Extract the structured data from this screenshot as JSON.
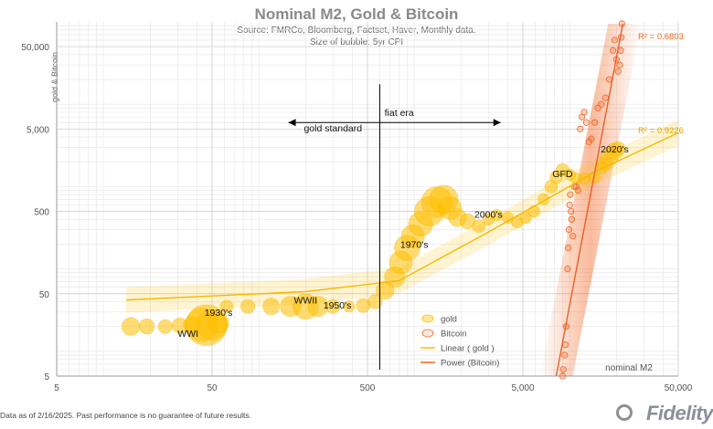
{
  "chart_data": {
    "type": "scatter",
    "title": "Nominal M2, Gold & Bitcoin",
    "subtitle_lines": [
      "Source: FMRCo, Bloomberg, Factset, Haver, Monthly data.",
      "Size of bubble: 5yr CPI"
    ],
    "xlabel": "nominal M2",
    "ylabel": "gold & Bitcoin",
    "x_scale": "log",
    "y_scale": "log",
    "xlim": [
      5,
      50000
    ],
    "ylim": [
      5,
      100000
    ],
    "x_ticks": [
      5,
      50,
      500,
      5000,
      50000
    ],
    "x_tick_labels": [
      "5",
      "50",
      "500",
      "5,000",
      "50,000"
    ],
    "y_ticks": [
      5,
      50,
      500,
      5000,
      50000
    ],
    "y_tick_labels": [
      "5",
      "50",
      "500",
      "5,000",
      "50,000"
    ],
    "grid": true,
    "legend_placement": "bottom-right",
    "legend": [
      "gold",
      "Bitcoin",
      "Linear ( gold )",
      "Power (Bitcoin)"
    ],
    "colors": {
      "gold": "#FFC000",
      "bitcoin": "#F26522",
      "divider": "#000000"
    },
    "series": [
      {
        "name": "gold",
        "points": [
          {
            "x": 15,
            "y": 20,
            "s": 1.4
          },
          {
            "x": 19,
            "y": 20,
            "s": 1.2
          },
          {
            "x": 25,
            "y": 20,
            "s": 1.1
          },
          {
            "x": 31,
            "y": 20.5,
            "s": 1.2
          },
          {
            "x": 37,
            "y": 21,
            "s": 1.3
          },
          {
            "x": 43,
            "y": 21,
            "s": 2.6
          },
          {
            "x": 46,
            "y": 20.7,
            "s": 3.2
          },
          {
            "x": 50,
            "y": 21,
            "s": 2.4
          },
          {
            "x": 55,
            "y": 22,
            "s": 1.6
          },
          {
            "x": 62,
            "y": 35,
            "s": 1.0
          },
          {
            "x": 85,
            "y": 35,
            "s": 1.1
          },
          {
            "x": 120,
            "y": 35,
            "s": 1.3
          },
          {
            "x": 160,
            "y": 35,
            "s": 1.6
          },
          {
            "x": 200,
            "y": 35,
            "s": 2.0
          },
          {
            "x": 240,
            "y": 35,
            "s": 1.6
          },
          {
            "x": 300,
            "y": 35,
            "s": 1.1
          },
          {
            "x": 380,
            "y": 35,
            "s": 0.9
          },
          {
            "x": 470,
            "y": 36,
            "s": 1.1
          },
          {
            "x": 560,
            "y": 40,
            "s": 1.1
          },
          {
            "x": 650,
            "y": 55,
            "s": 1.4
          },
          {
            "x": 750,
            "y": 80,
            "s": 1.6
          },
          {
            "x": 820,
            "y": 120,
            "s": 1.8
          },
          {
            "x": 900,
            "y": 180,
            "s": 2.0
          },
          {
            "x": 980,
            "y": 250,
            "s": 1.8
          },
          {
            "x": 1100,
            "y": 350,
            "s": 1.9
          },
          {
            "x": 1250,
            "y": 500,
            "s": 2.3
          },
          {
            "x": 1400,
            "y": 650,
            "s": 2.4
          },
          {
            "x": 1550,
            "y": 700,
            "s": 2.2
          },
          {
            "x": 1700,
            "y": 550,
            "s": 1.8
          },
          {
            "x": 1900,
            "y": 420,
            "s": 1.4
          },
          {
            "x": 2200,
            "y": 380,
            "s": 1.2
          },
          {
            "x": 2600,
            "y": 330,
            "s": 1.0
          },
          {
            "x": 3000,
            "y": 400,
            "s": 0.9
          },
          {
            "x": 3400,
            "y": 450,
            "s": 0.9
          },
          {
            "x": 4000,
            "y": 420,
            "s": 0.9
          },
          {
            "x": 4600,
            "y": 370,
            "s": 0.9
          },
          {
            "x": 5200,
            "y": 420,
            "s": 0.9
          },
          {
            "x": 5900,
            "y": 500,
            "s": 0.9
          },
          {
            "x": 6800,
            "y": 700,
            "s": 0.9
          },
          {
            "x": 7600,
            "y": 1000,
            "s": 1.0
          },
          {
            "x": 8200,
            "y": 1300,
            "s": 1.0
          },
          {
            "x": 9000,
            "y": 1600,
            "s": 1.0
          },
          {
            "x": 10000,
            "y": 1400,
            "s": 0.9
          },
          {
            "x": 11000,
            "y": 1250,
            "s": 0.9
          },
          {
            "x": 12500,
            "y": 1250,
            "s": 0.9
          },
          {
            "x": 14500,
            "y": 1300,
            "s": 0.9
          },
          {
            "x": 16000,
            "y": 1700,
            "s": 1.0
          },
          {
            "x": 17000,
            "y": 1900,
            "s": 1.1
          },
          {
            "x": 18000,
            "y": 2300,
            "s": 1.4
          },
          {
            "x": 19500,
            "y": 2700,
            "s": 1.3
          },
          {
            "x": 20500,
            "y": 2900,
            "s": 1.1
          }
        ]
      },
      {
        "name": "Bitcoin",
        "points": [
          {
            "x": 9000,
            "y": 5
          },
          {
            "x": 9100,
            "y": 6
          },
          {
            "x": 9300,
            "y": 9
          },
          {
            "x": 9400,
            "y": 12
          },
          {
            "x": 9500,
            "y": 20
          },
          {
            "x": 9700,
            "y": 100
          },
          {
            "x": 9800,
            "y": 180
          },
          {
            "x": 9900,
            "y": 300
          },
          {
            "x": 10000,
            "y": 600
          },
          {
            "x": 10100,
            "y": 800
          },
          {
            "x": 10200,
            "y": 500
          },
          {
            "x": 10300,
            "y": 400
          },
          {
            "x": 10500,
            "y": 250
          },
          {
            "x": 10700,
            "y": 1000
          },
          {
            "x": 11000,
            "y": 1000
          },
          {
            "x": 11300,
            "y": 900
          },
          {
            "x": 11700,
            "y": 5000
          },
          {
            "x": 12000,
            "y": 7000
          },
          {
            "x": 12400,
            "y": 8000
          },
          {
            "x": 12800,
            "y": 6000
          },
          {
            "x": 13300,
            "y": 3500
          },
          {
            "x": 13800,
            "y": 3800
          },
          {
            "x": 14500,
            "y": 6000
          },
          {
            "x": 15200,
            "y": 9000
          },
          {
            "x": 16000,
            "y": 10000
          },
          {
            "x": 17000,
            "y": 12000
          },
          {
            "x": 18000,
            "y": 20000
          },
          {
            "x": 19000,
            "y": 45000
          },
          {
            "x": 19500,
            "y": 60000
          },
          {
            "x": 20000,
            "y": 35000
          },
          {
            "x": 20500,
            "y": 25000
          },
          {
            "x": 21000,
            "y": 30000
          },
          {
            "x": 21300,
            "y": 45000
          },
          {
            "x": 21500,
            "y": 65000
          },
          {
            "x": 21700,
            "y": 95000
          }
        ]
      }
    ],
    "trendlines": [
      {
        "name": "Linear ( gold )",
        "r2_label": "R² = 0.9226",
        "points": [
          {
            "x": 14,
            "y": 42
          },
          {
            "x": 200,
            "y": 53
          },
          {
            "x": 800,
            "y": 72
          },
          {
            "x": 3000,
            "y": 280
          },
          {
            "x": 15000,
            "y": 1550
          },
          {
            "x": 50000,
            "y": 4500
          }
        ]
      },
      {
        "name": "Power (Bitcoin)",
        "r2_label": "R² = 0.6803",
        "points": [
          {
            "x": 8200,
            "y": 5
          },
          {
            "x": 22000,
            "y": 95000
          }
        ]
      }
    ],
    "annotations": [
      {
        "text": "WWI",
        "x": 35,
        "y": 15
      },
      {
        "text": "1930's",
        "x": 55,
        "y": 27
      },
      {
        "text": "WWII",
        "x": 200,
        "y": 38
      },
      {
        "text": "1950's",
        "x": 320,
        "y": 33
      },
      {
        "text": "1970's",
        "x": 1000,
        "y": 180
      },
      {
        "text": "2000's",
        "x": 3000,
        "y": 420
      },
      {
        "text": "GFD",
        "x": 9000,
        "y": 1300
      },
      {
        "text": "2020's",
        "x": 19500,
        "y": 2600
      },
      {
        "text": "fiat era",
        "x": 800,
        "y": 7200
      },
      {
        "text": "gold standard",
        "x": 300,
        "y": 4700
      }
    ],
    "divider_x": 600,
    "arrow": {
      "from_x": 155,
      "to_x": 3600,
      "y": 6000
    }
  },
  "footnote": "Data as of 2/16/2025. Past performance is no guarantee of future results.",
  "brand": "Fidelity"
}
